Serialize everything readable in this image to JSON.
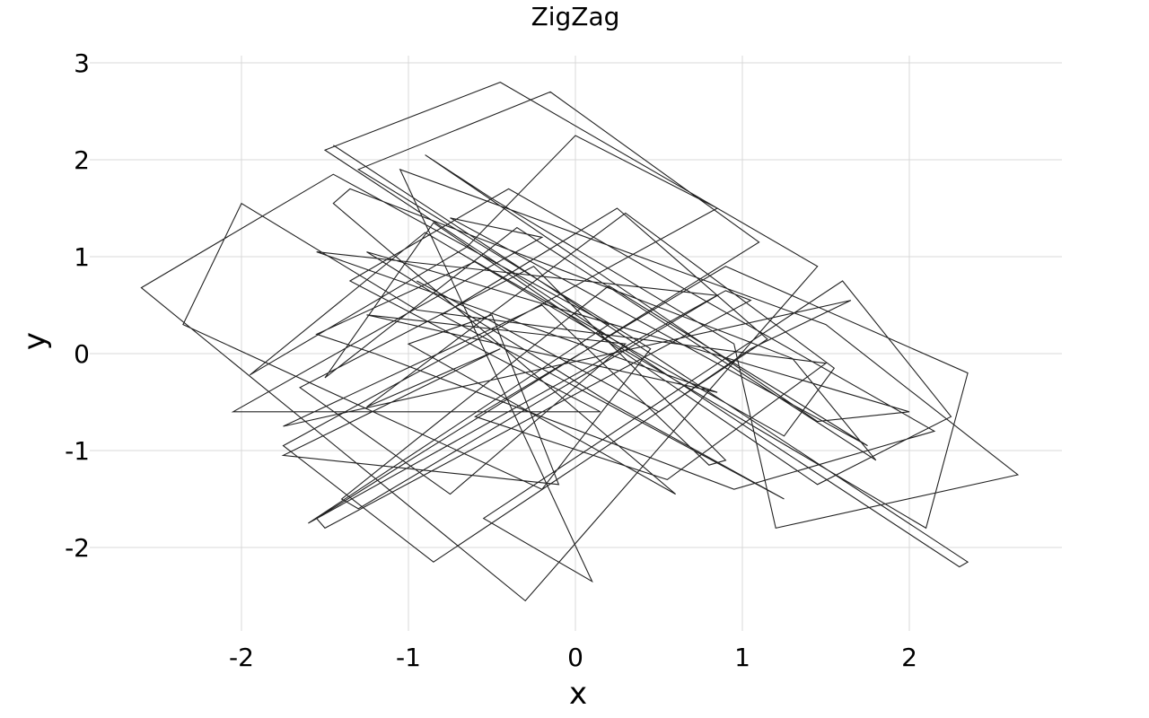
{
  "chart_data": {
    "type": "line",
    "title": "ZigZag",
    "xlabel": "x",
    "ylabel": "y",
    "xlim": [
      -2.9,
      2.9
    ],
    "ylim": [
      -2.85,
      3.05
    ],
    "grid": true,
    "x_ticks": [
      {
        "value": -2,
        "label": "-2"
      },
      {
        "value": -1,
        "label": "-1"
      },
      {
        "value": 0,
        "label": "0"
      },
      {
        "value": 1,
        "label": "1"
      },
      {
        "value": 2,
        "label": "2"
      }
    ],
    "y_ticks": [
      {
        "value": -2,
        "label": "-2"
      },
      {
        "value": -1,
        "label": "-1"
      },
      {
        "value": 0,
        "label": "0"
      },
      {
        "value": 1,
        "label": "1"
      },
      {
        "value": 2,
        "label": "2"
      },
      {
        "value": 3,
        "label": "3"
      }
    ],
    "series": [
      {
        "color": "#222222",
        "points": [
          [
            -1.45,
            2.15
          ],
          [
            2.35,
            -2.15
          ],
          [
            2.3,
            -2.2
          ],
          [
            -1.5,
            2.1
          ],
          [
            -0.45,
            2.8
          ],
          [
            1.45,
            0.9
          ],
          [
            -0.3,
            -2.55
          ],
          [
            -2.6,
            0.68
          ],
          [
            -1.45,
            1.85
          ],
          [
            0.2,
            0.3
          ],
          [
            -1.6,
            -1.75
          ],
          [
            0.9,
            0.65
          ],
          [
            1.05,
            0.55
          ],
          [
            -1.5,
            -1.8
          ],
          [
            -1.55,
            -1.7
          ],
          [
            1.1,
            1.15
          ],
          [
            -0.15,
            2.7
          ],
          [
            -1.3,
            1.9
          ],
          [
            0.45,
            0.05
          ],
          [
            -0.2,
            -1.4
          ],
          [
            -2.35,
            0.3
          ],
          [
            -2.0,
            1.55
          ],
          [
            -0.95,
            0.45
          ],
          [
            1.5,
            -0.1
          ],
          [
            0.55,
            -1.3
          ],
          [
            -0.6,
            -0.65
          ],
          [
            0.9,
            0.9
          ],
          [
            2.35,
            -0.2
          ],
          [
            2.1,
            -1.8
          ],
          [
            -0.9,
            1.25
          ],
          [
            -1.95,
            -0.22
          ],
          [
            -0.65,
            1.1
          ],
          [
            0.0,
            2.25
          ],
          [
            0.85,
            1.5
          ],
          [
            -1.75,
            -0.95
          ],
          [
            -0.85,
            -2.15
          ],
          [
            1.15,
            0.15
          ],
          [
            0.25,
            1.5
          ],
          [
            -0.8,
            0.4
          ],
          [
            1.25,
            -1.5
          ],
          [
            0.2,
            -0.5
          ],
          [
            -1.25,
            1.05
          ],
          [
            2.0,
            -0.6
          ],
          [
            1.45,
            -0.7
          ],
          [
            -0.9,
            2.05
          ],
          [
            -0.5,
            1.6
          ],
          [
            0.95,
            0.1
          ],
          [
            1.2,
            -1.8
          ],
          [
            2.65,
            -1.25
          ],
          [
            1.5,
            0.3
          ],
          [
            -1.05,
            1.9
          ],
          [
            0.1,
            -2.35
          ],
          [
            -0.55,
            -1.7
          ],
          [
            1.6,
            0.75
          ],
          [
            2.25,
            -0.65
          ],
          [
            1.45,
            -1.35
          ],
          [
            -0.85,
            1.35
          ],
          [
            -1.5,
            -0.25
          ],
          [
            -0.35,
            1.3
          ],
          [
            1.8,
            -1.1
          ],
          [
            1.3,
            -0.05
          ],
          [
            -1.35,
            1.7
          ],
          [
            -1.45,
            1.55
          ],
          [
            0.6,
            -1.45
          ],
          [
            -1.0,
            0.1
          ],
          [
            -0.5,
            0.4
          ],
          [
            -0.1,
            -1.35
          ],
          [
            -1.75,
            -1.05
          ],
          [
            -0.45,
            0.05
          ],
          [
            -1.25,
            -0.55
          ],
          [
            0.3,
            1.45
          ],
          [
            1.55,
            -0.15
          ],
          [
            1.25,
            -0.85
          ],
          [
            -0.6,
            0.95
          ],
          [
            -1.55,
            0.2
          ],
          [
            -1.2,
            0.0
          ],
          [
            0.95,
            -1.4
          ],
          [
            2.15,
            -0.8
          ],
          [
            -0.4,
            1.7
          ],
          [
            -1.35,
            0.75
          ],
          [
            0.15,
            -0.6
          ],
          [
            -2.05,
            -0.6
          ],
          [
            -0.2,
            1.2
          ],
          [
            -0.75,
            1.4
          ],
          [
            0.0,
            0.7
          ],
          [
            1.75,
            -0.95
          ],
          [
            0.2,
            0.7
          ],
          [
            -1.4,
            -1.5
          ],
          [
            -1.3,
            -1.6
          ],
          [
            0.85,
            0.6
          ],
          [
            -1.55,
            1.05
          ],
          [
            0.85,
            -0.4
          ],
          [
            -1.25,
            0.4
          ],
          [
            0.3,
            0.1
          ],
          [
            -0.75,
            -1.45
          ],
          [
            -1.65,
            -0.35
          ],
          [
            -0.25,
            0.9
          ],
          [
            0.9,
            -1.1
          ],
          [
            0.8,
            -1.15
          ],
          [
            -0.2,
            0.5
          ],
          [
            -1.75,
            -0.75
          ],
          [
            1.65,
            0.55
          ],
          [
            1.05,
            0.05
          ],
          [
            0.5,
            -0.6
          ],
          [
            -0.95,
            0.75
          ]
        ]
      }
    ]
  }
}
